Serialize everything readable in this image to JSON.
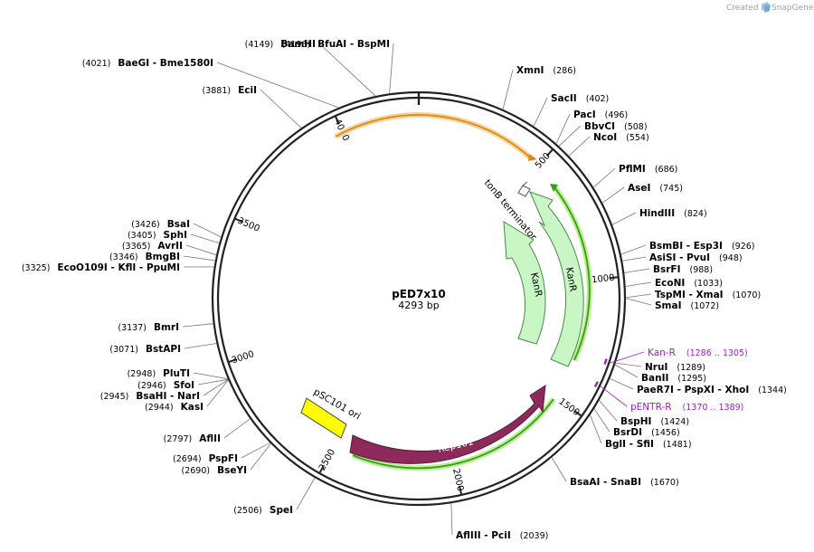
{
  "header": {
    "created_by": "Created by",
    "brand": "SnapGene"
  },
  "plasmid": {
    "name": "pED7x10",
    "size": "4293 bp",
    "length": 4293
  },
  "colors": {
    "kan": "#c8f7c5",
    "kan_stroke": "#4a8a4a",
    "rep101": "#8e2a5a",
    "psc101": "#ffff00",
    "orange": "#d98a1e",
    "orange_glow": "#f8d49a",
    "green_line": "#3a9a1e",
    "green_glow": "#b8f090",
    "primer": "#a020c0"
  },
  "ticks": [
    {
      "label": "500",
      "bp": 500
    },
    {
      "label": "1000",
      "bp": 1000
    },
    {
      "label": "1500",
      "bp": 1500
    },
    {
      "label": "2000",
      "bp": 2000
    },
    {
      "label": "2500",
      "bp": 2500
    },
    {
      "label": "3000",
      "bp": 3000
    },
    {
      "label": "3500",
      "bp": 3500
    },
    {
      "label": "4000",
      "bp": 4000
    }
  ],
  "enzymes": [
    {
      "id": "bamhi",
      "names": "BamHI",
      "pos": "(4149)",
      "bp": 4149
    },
    {
      "id": "bfuai",
      "names": "BfuAI  -  BspMI",
      "pos": "(4196)",
      "bp": 4196
    },
    {
      "id": "baegi",
      "names": "BaeGI  -  Bme1580I",
      "pos": "(4021)",
      "bp": 4021
    },
    {
      "id": "eci",
      "names": "EciI",
      "pos": "(3881)",
      "bp": 3881
    },
    {
      "id": "xmni",
      "names": "XmnI",
      "pos": "(286)",
      "bp": 286
    },
    {
      "id": "sacii",
      "names": "SacII",
      "pos": "(402)",
      "bp": 402
    },
    {
      "id": "paci",
      "names": "PacI",
      "pos": "(496)",
      "bp": 496
    },
    {
      "id": "bbvci",
      "names": "BbvCI",
      "pos": "(508)",
      "bp": 508
    },
    {
      "id": "ncoi",
      "names": "NcoI",
      "pos": "(554)",
      "bp": 554
    },
    {
      "id": "pflmi",
      "names": "PflMI",
      "pos": "(686)",
      "bp": 686
    },
    {
      "id": "asei",
      "names": "AseI",
      "pos": "(745)",
      "bp": 745
    },
    {
      "id": "hindiii",
      "names": "HindIII",
      "pos": "(824)",
      "bp": 824
    },
    {
      "id": "bsmbi",
      "names": "BsmBI  -  Esp3I",
      "pos": "(926)",
      "bp": 926
    },
    {
      "id": "asisi",
      "names": "AsiSI  -  PvuI",
      "pos": "(948)",
      "bp": 948
    },
    {
      "id": "bsrfi",
      "names": "BsrFI",
      "pos": "(988)",
      "bp": 988
    },
    {
      "id": "econi",
      "names": "EcoNI",
      "pos": "(1033)",
      "bp": 1033
    },
    {
      "id": "tspmi",
      "names": "TspMI  -  XmaI",
      "pos": "(1070)",
      "bp": 1070
    },
    {
      "id": "smai",
      "names": "SmaI",
      "pos": "(1072)",
      "bp": 1072
    },
    {
      "id": "nrui",
      "names": "NruI",
      "pos": "(1289)",
      "bp": 1289
    },
    {
      "id": "banii",
      "names": "BanII",
      "pos": "(1295)",
      "bp": 1295
    },
    {
      "id": "paer7i",
      "names": "PaeR7I  -  PspXI  -  XhoI",
      "pos": "(1344)",
      "bp": 1344
    },
    {
      "id": "bsphi",
      "names": "BspHI",
      "pos": "(1424)",
      "bp": 1424
    },
    {
      "id": "bsrdi",
      "names": "BsrDI",
      "pos": "(1456)",
      "bp": 1456
    },
    {
      "id": "bgli",
      "names": "BglI  -  SfiI",
      "pos": "(1481)",
      "bp": 1481
    },
    {
      "id": "bsaai",
      "names": "BsaAI  -  SnaBI",
      "pos": "(1670)",
      "bp": 1670
    },
    {
      "id": "afliii",
      "names": "AflIII  -  PciI",
      "pos": "(2039)",
      "bp": 2039
    },
    {
      "id": "spei",
      "names": "SpeI",
      "pos": "(2506)",
      "bp": 2506
    },
    {
      "id": "bseyi",
      "names": "BseYI",
      "pos": "(2690)",
      "bp": 2690
    },
    {
      "id": "pspfi",
      "names": "PspFI",
      "pos": "(2694)",
      "bp": 2694
    },
    {
      "id": "aflii",
      "names": "AflII",
      "pos": "(2797)",
      "bp": 2797
    },
    {
      "id": "kasi",
      "names": "KasI",
      "pos": "(2944)",
      "bp": 2944
    },
    {
      "id": "bsahi",
      "names": "BsaHI  -  NarI",
      "pos": "(2945)",
      "bp": 2945
    },
    {
      "id": "sfoi",
      "names": "SfoI",
      "pos": "(2946)",
      "bp": 2946
    },
    {
      "id": "plutI",
      "names": "PluTI",
      "pos": "(2948)",
      "bp": 2948
    },
    {
      "id": "bstapi",
      "names": "BstAPI",
      "pos": "(3071)",
      "bp": 3071
    },
    {
      "id": "bmri",
      "names": "BmrI",
      "pos": "(3137)",
      "bp": 3137
    },
    {
      "id": "ecoo109i",
      "names": "EcoO109I  -  KflI  -  PpuMI",
      "pos": "(3325)",
      "bp": 3325
    },
    {
      "id": "bmgbi",
      "names": "BmgBI",
      "pos": "(3346)",
      "bp": 3346
    },
    {
      "id": "avrii",
      "names": "AvrII",
      "pos": "(3365)",
      "bp": 3365
    },
    {
      "id": "sphi",
      "names": "SphI",
      "pos": "(3405)",
      "bp": 3405
    },
    {
      "id": "bsai",
      "names": "BsaI",
      "pos": "(3426)",
      "bp": 3426
    }
  ],
  "primers": [
    {
      "name": "Kan-R",
      "range": "(1286 .. 1305)",
      "bp": 1295
    },
    {
      "name": "pENTR-R",
      "range": "(1370 .. 1389)",
      "bp": 1380
    }
  ],
  "features": [
    {
      "name": "tonB terminator"
    },
    {
      "name": "KanR"
    },
    {
      "name": "KanR"
    },
    {
      "name": "Rep101"
    },
    {
      "name": "pSC101 ori"
    }
  ]
}
